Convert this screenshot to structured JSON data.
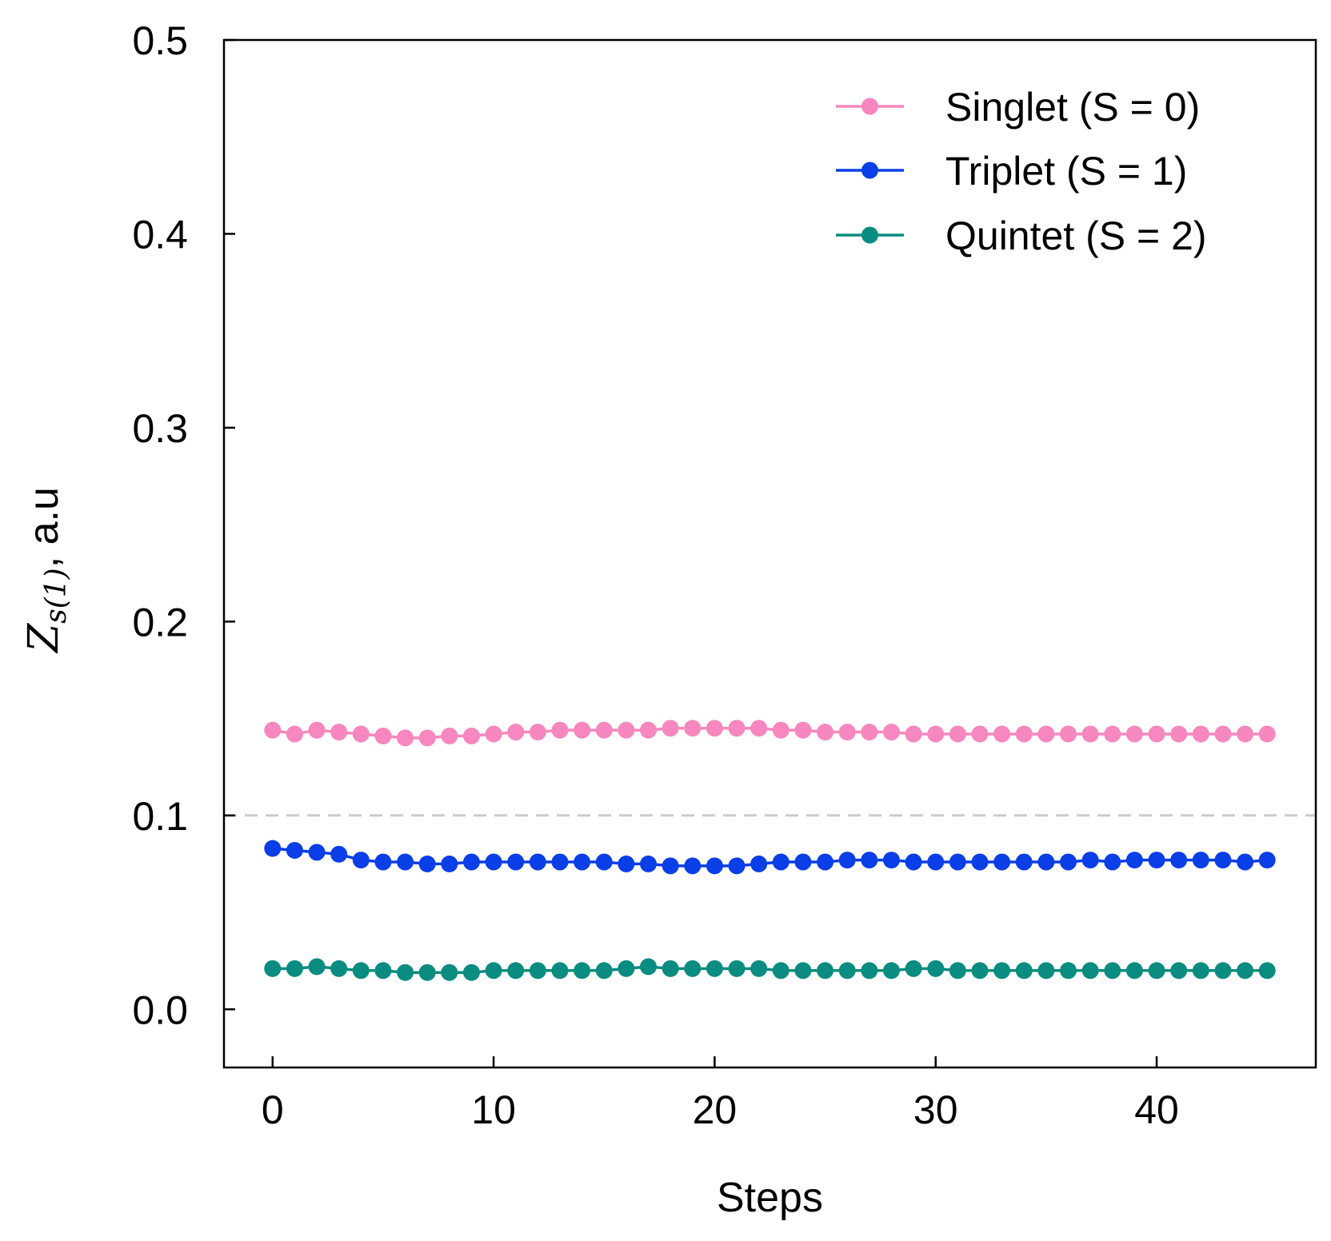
{
  "chart_data": {
    "type": "line",
    "xlabel": "Steps",
    "ylabel": {
      "symbol": "Z",
      "subscript": "s(1)",
      "suffix": ", a.u"
    },
    "xlim": [
      -2.2,
      47.2
    ],
    "ylim": [
      -0.03,
      0.5
    ],
    "xticks": [
      0,
      10,
      20,
      30,
      40
    ],
    "yticks": [
      0.0,
      0.1,
      0.2,
      0.3,
      0.4,
      0.5
    ],
    "xtick_labels": [
      "0",
      "10",
      "20",
      "30",
      "40"
    ],
    "ytick_labels": [
      "0.0",
      "0.1",
      "0.2",
      "0.3",
      "0.4",
      "0.5"
    ],
    "reference_line": {
      "y": 0.1,
      "style": "dashed",
      "color": "#cccccc"
    },
    "legend_position": "top-right",
    "x": [
      0,
      1,
      2,
      3,
      4,
      5,
      6,
      7,
      8,
      9,
      10,
      11,
      12,
      13,
      14,
      15,
      16,
      17,
      18,
      19,
      20,
      21,
      22,
      23,
      24,
      25,
      26,
      27,
      28,
      29,
      30,
      31,
      32,
      33,
      34,
      35,
      36,
      37,
      38,
      39,
      40,
      41,
      42,
      43,
      44,
      45
    ],
    "series": [
      {
        "name": "Singlet  (S = 0)",
        "color": "#f787bf",
        "values": [
          0.144,
          0.142,
          0.144,
          0.143,
          0.142,
          0.141,
          0.14,
          0.14,
          0.141,
          0.141,
          0.142,
          0.143,
          0.143,
          0.144,
          0.144,
          0.144,
          0.144,
          0.144,
          0.145,
          0.145,
          0.145,
          0.145,
          0.145,
          0.144,
          0.144,
          0.143,
          0.143,
          0.143,
          0.143,
          0.142,
          0.142,
          0.142,
          0.142,
          0.142,
          0.142,
          0.142,
          0.142,
          0.142,
          0.142,
          0.142,
          0.142,
          0.142,
          0.142,
          0.142,
          0.142,
          0.142
        ]
      },
      {
        "name": "Triplet   (S = 1)",
        "color": "#0a3ee6",
        "values": [
          0.083,
          0.082,
          0.081,
          0.08,
          0.077,
          0.076,
          0.076,
          0.075,
          0.075,
          0.076,
          0.076,
          0.076,
          0.076,
          0.076,
          0.076,
          0.076,
          0.075,
          0.075,
          0.074,
          0.074,
          0.074,
          0.074,
          0.075,
          0.076,
          0.076,
          0.076,
          0.077,
          0.077,
          0.077,
          0.076,
          0.076,
          0.076,
          0.076,
          0.076,
          0.076,
          0.076,
          0.076,
          0.077,
          0.076,
          0.077,
          0.077,
          0.077,
          0.077,
          0.077,
          0.076,
          0.077
        ]
      },
      {
        "name": "Quintet (S = 2)",
        "color": "#0a8c80",
        "values": [
          0.021,
          0.021,
          0.022,
          0.021,
          0.02,
          0.02,
          0.019,
          0.019,
          0.019,
          0.019,
          0.02,
          0.02,
          0.02,
          0.02,
          0.02,
          0.02,
          0.021,
          0.022,
          0.021,
          0.021,
          0.021,
          0.021,
          0.021,
          0.02,
          0.02,
          0.02,
          0.02,
          0.02,
          0.02,
          0.021,
          0.021,
          0.02,
          0.02,
          0.02,
          0.02,
          0.02,
          0.02,
          0.02,
          0.02,
          0.02,
          0.02,
          0.02,
          0.02,
          0.02,
          0.02,
          0.02
        ]
      }
    ]
  }
}
